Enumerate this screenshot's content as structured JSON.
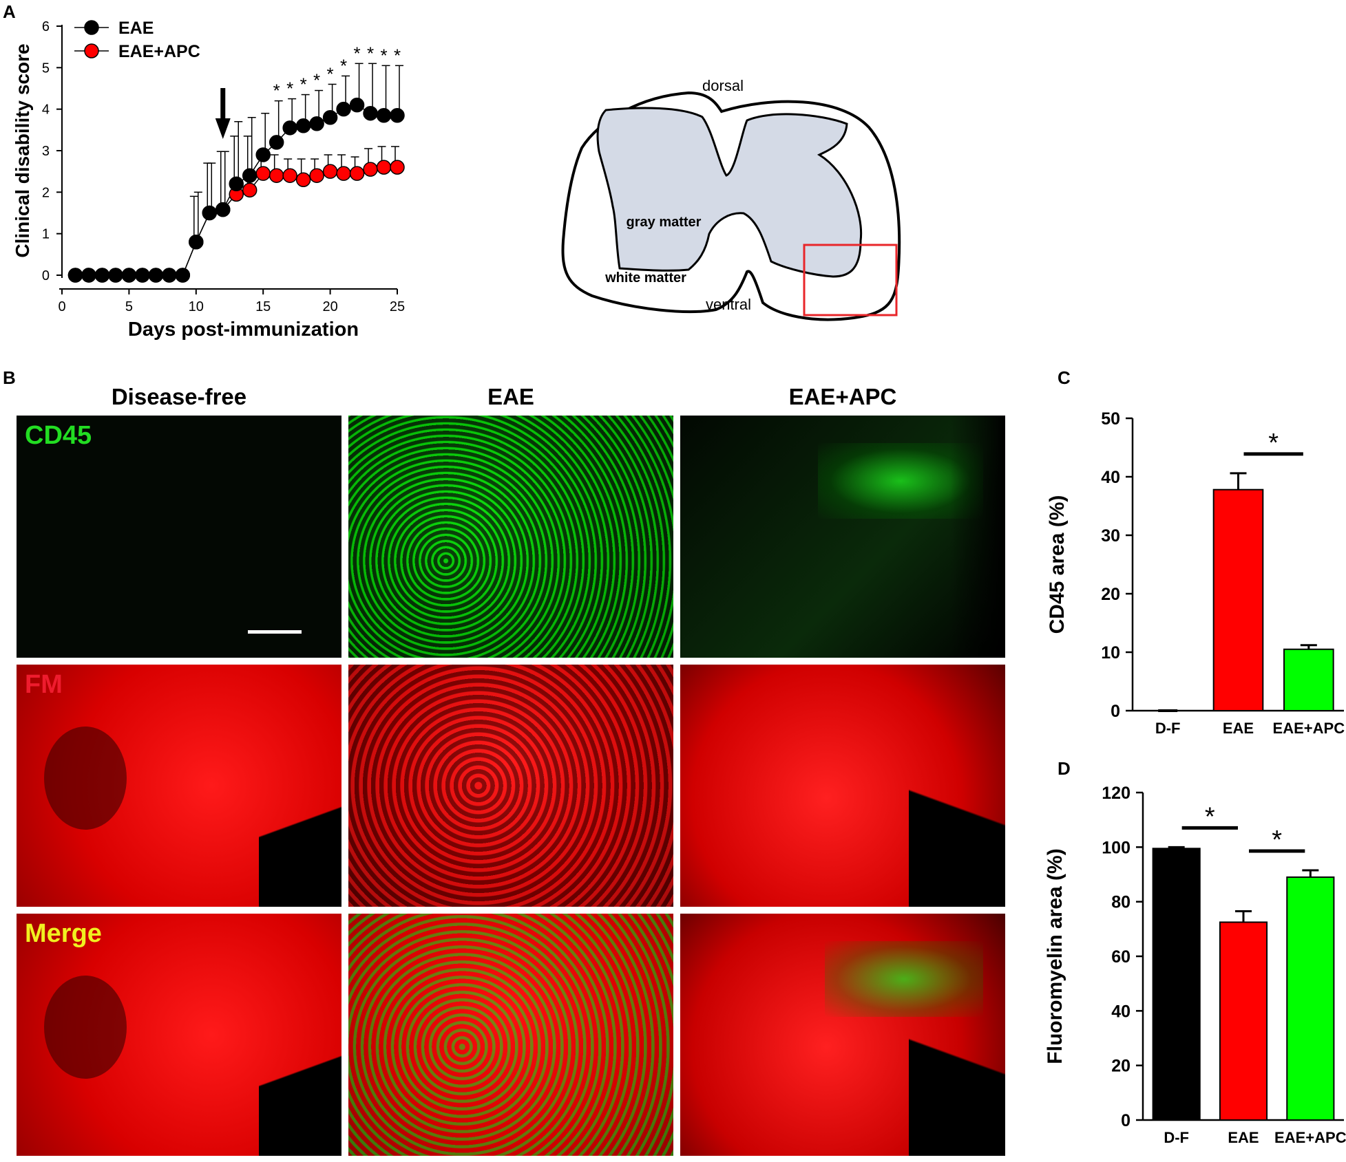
{
  "panel_letters": {
    "a": "A",
    "b": "B",
    "c": "C",
    "d": "D"
  },
  "colors": {
    "black": "#000000",
    "red": "#ff0000",
    "green": "#00ff00",
    "gray_matter": "#d4dae6",
    "box": "#e8262a"
  },
  "schematic": {
    "dorsal": "dorsal",
    "gray_matter": "gray matter",
    "white_matter": "white matter",
    "ventral": "ventral"
  },
  "micrographs": {
    "columns": [
      "Disease-free",
      "EAE",
      "EAE+APC"
    ],
    "rows": [
      "CD45",
      "FM",
      "Merge"
    ]
  },
  "chart_data": [
    {
      "type": "line",
      "panel": "A",
      "xlabel": "Days post-immunization",
      "ylabel": "Clinical disability score",
      "xlim": [
        0,
        25
      ],
      "ylim": [
        0,
        6
      ],
      "xticks": [
        "0",
        "5",
        "10",
        "15",
        "20",
        "25"
      ],
      "yticks": [
        "0",
        "1",
        "2",
        "3",
        "4",
        "5",
        "6"
      ],
      "x": [
        1,
        2,
        3,
        4,
        5,
        6,
        7,
        8,
        9,
        10,
        11,
        12,
        13,
        14,
        15,
        16,
        17,
        18,
        19,
        20,
        21,
        22,
        23,
        24,
        25
      ],
      "series": [
        {
          "name": "EAE",
          "color": "#000000",
          "values": [
            0,
            0,
            0,
            0,
            0,
            0,
            0,
            0,
            0,
            0.8,
            1.5,
            1.58,
            2.2,
            2.4,
            2.9,
            3.2,
            3.55,
            3.6,
            3.65,
            3.8,
            4.0,
            4.1,
            3.9,
            3.85,
            3.85
          ],
          "error": [
            0,
            0,
            0,
            0,
            0,
            0,
            0,
            0,
            0,
            1.2,
            1.2,
            1.4,
            1.5,
            1.4,
            1.0,
            1.0,
            0.7,
            0.75,
            0.8,
            0.8,
            0.8,
            1.0,
            1.2,
            1.2,
            1.2
          ]
        },
        {
          "name": "EAE+APC",
          "color": "#ff0000",
          "values": [
            0,
            0,
            0,
            0,
            0,
            0,
            0,
            0,
            0,
            0.8,
            1.5,
            1.58,
            1.95,
            2.05,
            2.45,
            2.4,
            2.4,
            2.3,
            2.4,
            2.5,
            2.45,
            2.45,
            2.55,
            2.6,
            2.6
          ],
          "error": [
            0,
            0,
            0,
            0,
            0,
            0,
            0,
            0,
            0,
            1.1,
            1.2,
            1.4,
            1.4,
            1.3,
            0.5,
            0.5,
            0.4,
            0.5,
            0.4,
            0.4,
            0.45,
            0.4,
            0.5,
            0.5,
            0.5
          ]
        }
      ],
      "significance_days": [
        16,
        17,
        18,
        19,
        20,
        21,
        22,
        23,
        24,
        25
      ],
      "significance_symbol": "*",
      "arrow_day": 12,
      "legend": "top-left"
    },
    {
      "type": "bar",
      "panel": "C",
      "ylabel": "CD45 area (%)",
      "ylim": [
        0,
        50
      ],
      "yticks": [
        "0",
        "10",
        "20",
        "30",
        "40",
        "50"
      ],
      "categories": [
        "D-F",
        "EAE",
        "EAE+APC"
      ],
      "values": [
        0,
        37.8,
        10.5
      ],
      "errors": [
        0,
        2.8,
        0.7
      ],
      "bar_colors": [
        "#000000",
        "#ff0000",
        "#00ff00"
      ],
      "significance": [
        {
          "between": [
            1,
            2
          ],
          "symbol": "*"
        }
      ]
    },
    {
      "type": "bar",
      "panel": "D",
      "ylabel": "Fluoromyelin area (%)",
      "ylim": [
        0,
        120
      ],
      "yticks": [
        "0",
        "20",
        "40",
        "60",
        "80",
        "100",
        "120"
      ],
      "categories": [
        "D-F",
        "EAE",
        "EAE+APC"
      ],
      "values": [
        99.5,
        72.5,
        89
      ],
      "errors": [
        0.5,
        4,
        2.5
      ],
      "bar_colors": [
        "#000000",
        "#ff0000",
        "#00ff00"
      ],
      "significance": [
        {
          "between": [
            0,
            1
          ],
          "symbol": "*"
        },
        {
          "between": [
            1,
            2
          ],
          "symbol": "*"
        }
      ]
    }
  ]
}
